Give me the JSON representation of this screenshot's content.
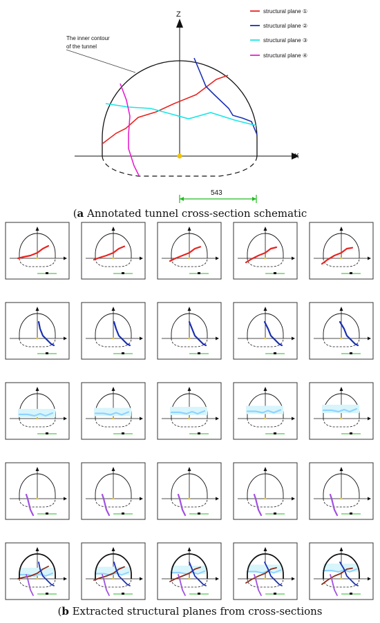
{
  "main_diagram": {
    "z_axis_label": "Z",
    "x_axis_label": "X",
    "contour_annotation": [
      "The inner contour",
      "of the tunnel"
    ],
    "dimension_label": "543",
    "legend": [
      {
        "label": "structural plane ①",
        "color": "#e8231f"
      },
      {
        "label": "structural plane ②",
        "color": "#1a2fb3"
      },
      {
        "label": "structural plane ③",
        "color": "#18e6e6"
      },
      {
        "label": "structural plane ④",
        "color": "#e51fd0"
      }
    ]
  },
  "captions": {
    "a": {
      "letter": "a",
      "text": " Annotated tunnel cross-section schematic"
    },
    "b": {
      "letter": "b",
      "text": " Extracted structural planes from cross-sections"
    }
  },
  "colors": {
    "plane1_small": "#e8231f",
    "plane2_small": "#1a2fb3",
    "plane3_small": "#8fd3ff",
    "plane4_small": "#a24fe0",
    "dimension": "#22bb22",
    "origin": "#f2c400"
  }
}
